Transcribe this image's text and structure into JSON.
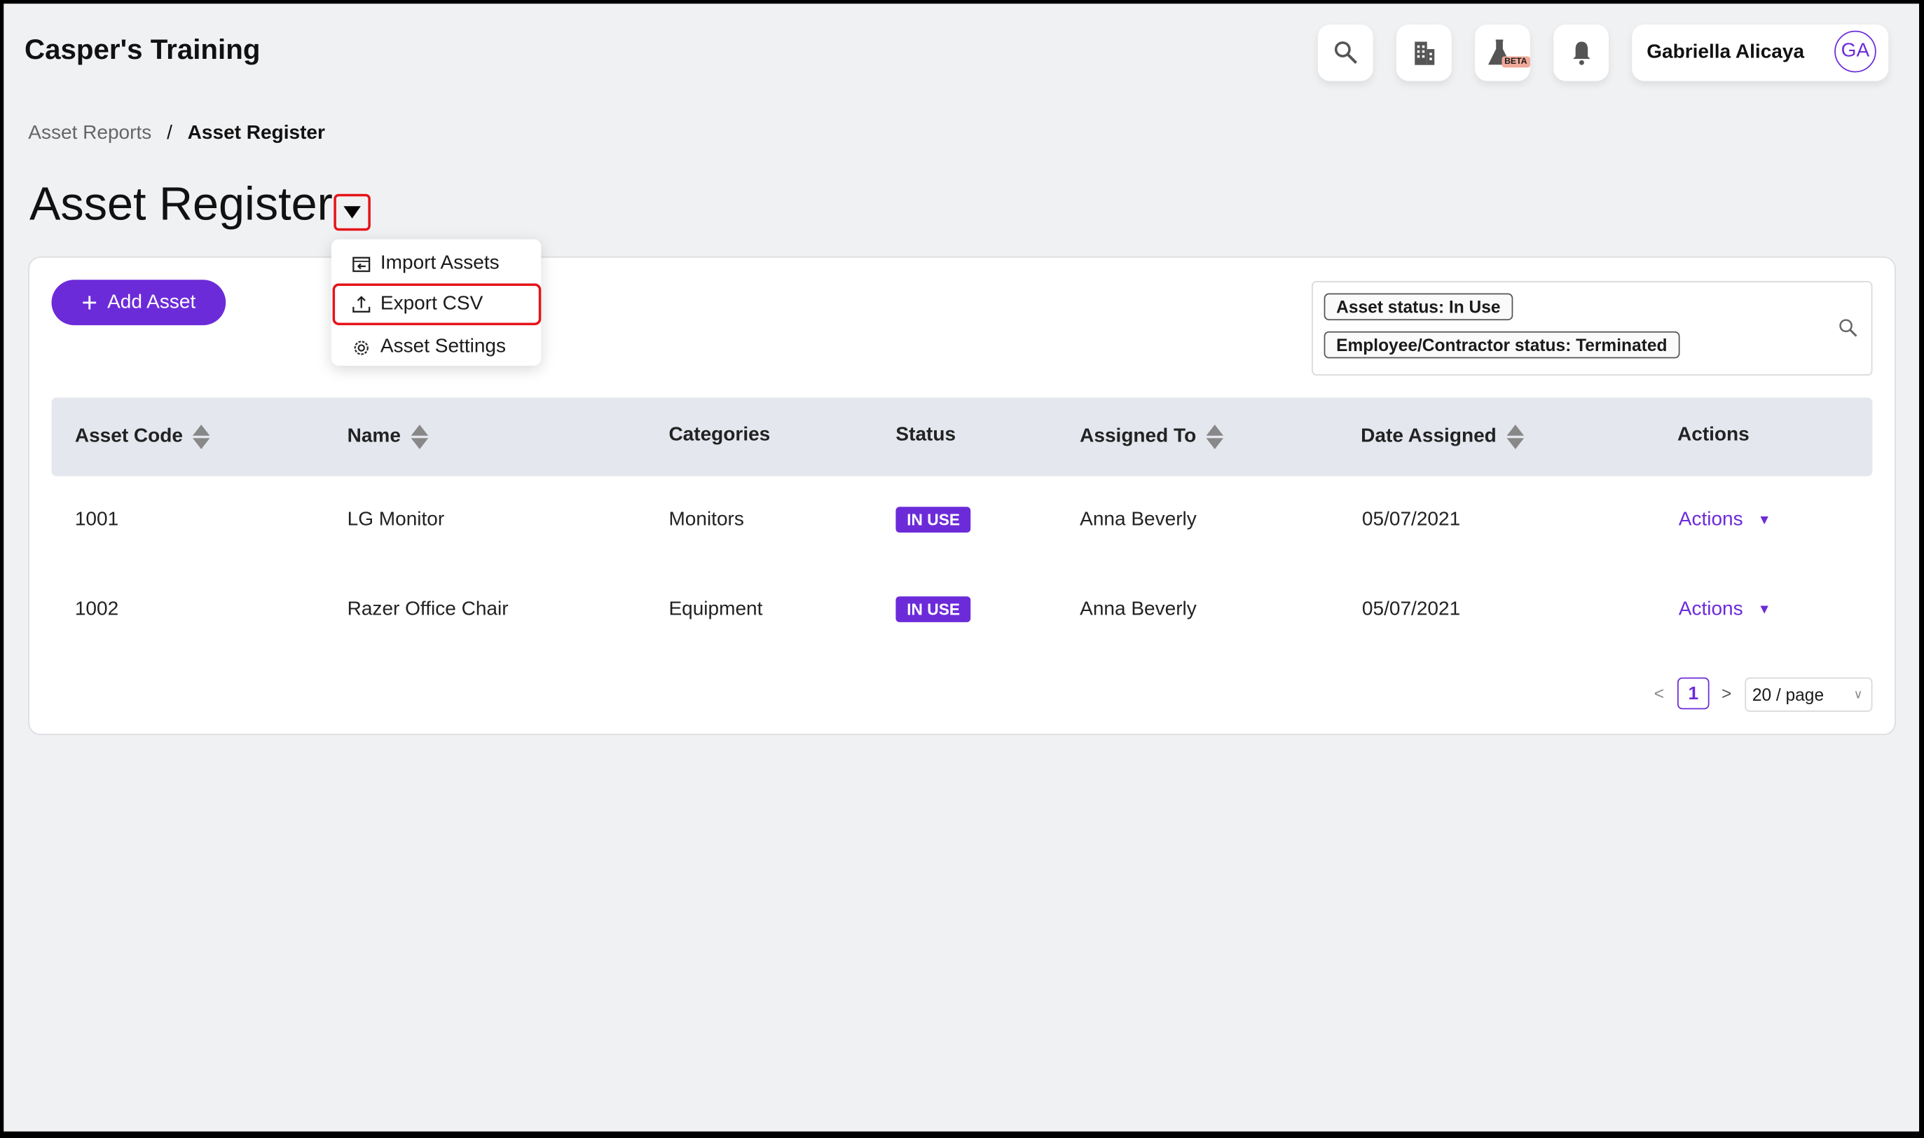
{
  "header": {
    "brand": "Casper's Training",
    "user_name": "Gabriella Alicaya",
    "avatar_initials": "GA",
    "beta_label": "BETA"
  },
  "breadcrumb": {
    "parent": "Asset Reports",
    "separator": "/",
    "current": "Asset Register"
  },
  "page": {
    "title": "Asset Register"
  },
  "toolbar": {
    "add_label": "Add Asset"
  },
  "menu": {
    "items": [
      {
        "label": "Import Assets",
        "icon": "import-icon"
      },
      {
        "label": "Export CSV",
        "icon": "upload-icon",
        "highlighted": true
      },
      {
        "label": "Asset Settings",
        "icon": "gear-icon"
      }
    ]
  },
  "filters": [
    "Asset status: In Use",
    "Employee/Contractor status: Terminated"
  ],
  "table": {
    "columns": [
      "Asset Code",
      "Name",
      "Categories",
      "Status",
      "Assigned To",
      "Date Assigned",
      "Actions"
    ],
    "rows": [
      {
        "code": "1001",
        "name": "LG Monitor",
        "category": "Monitors",
        "status": "IN USE",
        "assigned": "Anna Beverly",
        "date": "05/07/2021",
        "action": "Actions"
      },
      {
        "code": "1002",
        "name": "Razer Office Chair",
        "category": "Equipment",
        "status": "IN USE",
        "assigned": "Anna Beverly",
        "date": "05/07/2021",
        "action": "Actions"
      }
    ]
  },
  "pagination": {
    "prev": "<",
    "current": "1",
    "next": ">",
    "page_size": "20 / page"
  },
  "colors": {
    "accent": "#6c2bd9",
    "highlight": "#e5141a"
  }
}
